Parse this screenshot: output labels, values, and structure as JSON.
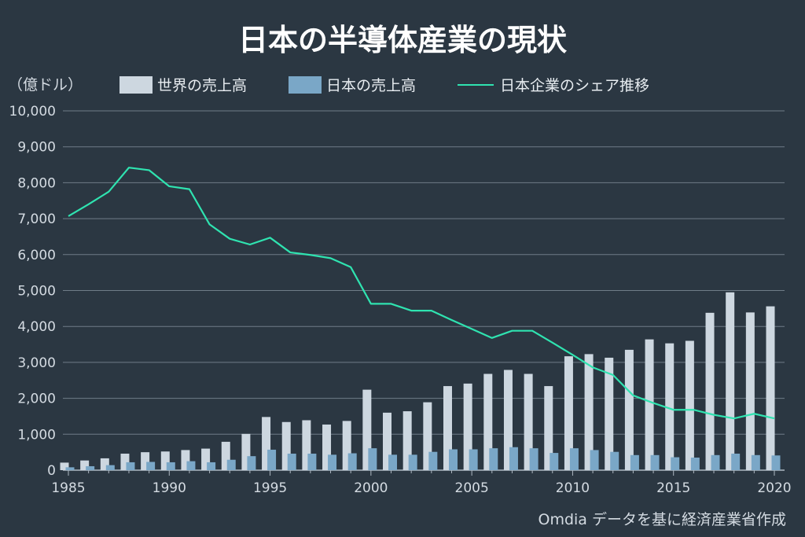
{
  "chart_data": {
    "type": "bar",
    "title": "日本の半導体産業の現状",
    "ylabel": "（億ドル）",
    "source": "Omdia データを基に経済産業省作成",
    "ylim": [
      0,
      10000
    ],
    "yticks": [
      0,
      1000,
      2000,
      3000,
      4000,
      5000,
      6000,
      7000,
      8000,
      9000,
      10000
    ],
    "ytick_labels": [
      "0",
      "1,000",
      "2,000",
      "3,000",
      "4,000",
      "5,000",
      "6,000",
      "7,000",
      "8,000",
      "9,000",
      "10,000"
    ],
    "xtick_labels": [
      "1985",
      "1990",
      "1995",
      "2000",
      "2005",
      "2010",
      "2015",
      "2020"
    ],
    "grid": true,
    "legend_position": "top",
    "x": [
      1985,
      1986,
      1987,
      1988,
      1989,
      1990,
      1991,
      1992,
      1993,
      1994,
      1995,
      1996,
      1997,
      1998,
      1999,
      2000,
      2001,
      2002,
      2003,
      2004,
      2005,
      2006,
      2007,
      2008,
      2009,
      2010,
      2011,
      2012,
      2013,
      2014,
      2015,
      2016,
      2017,
      2018,
      2019,
      2020
    ],
    "series": [
      {
        "name": "世界の売上高",
        "kind": "bar",
        "color": "#cdd7e0",
        "values": [
          210,
          270,
          330,
          460,
          500,
          520,
          560,
          600,
          790,
          1010,
          1480,
          1340,
          1390,
          1270,
          1370,
          2240,
          1600,
          1640,
          1890,
          2340,
          2410,
          2680,
          2790,
          2680,
          2340,
          3170,
          3230,
          3130,
          3350,
          3640,
          3530,
          3600,
          4380,
          4950,
          4390,
          4560
        ]
      },
      {
        "name": "日本の売上高",
        "kind": "bar",
        "color": "#7aa7c7",
        "values": [
          80,
          110,
          140,
          220,
          230,
          220,
          250,
          220,
          290,
          390,
          570,
          460,
          460,
          430,
          470,
          610,
          430,
          430,
          510,
          580,
          580,
          610,
          640,
          610,
          480,
          610,
          560,
          510,
          420,
          420,
          360,
          350,
          420,
          460,
          420,
          410
        ]
      },
      {
        "name": "日本企業のシェア推移",
        "kind": "line",
        "color": "#2fe3b0",
        "values": [
          7070,
          7400,
          7750,
          8420,
          8350,
          7900,
          7820,
          6840,
          6440,
          6280,
          6470,
          6060,
          5990,
          5900,
          5650,
          4630,
          4630,
          4440,
          4440,
          4180,
          3930,
          3680,
          3880,
          3880,
          3550,
          3210,
          2860,
          2650,
          2080,
          1870,
          1680,
          1680,
          1540,
          1440,
          1570,
          1440
        ]
      }
    ]
  }
}
